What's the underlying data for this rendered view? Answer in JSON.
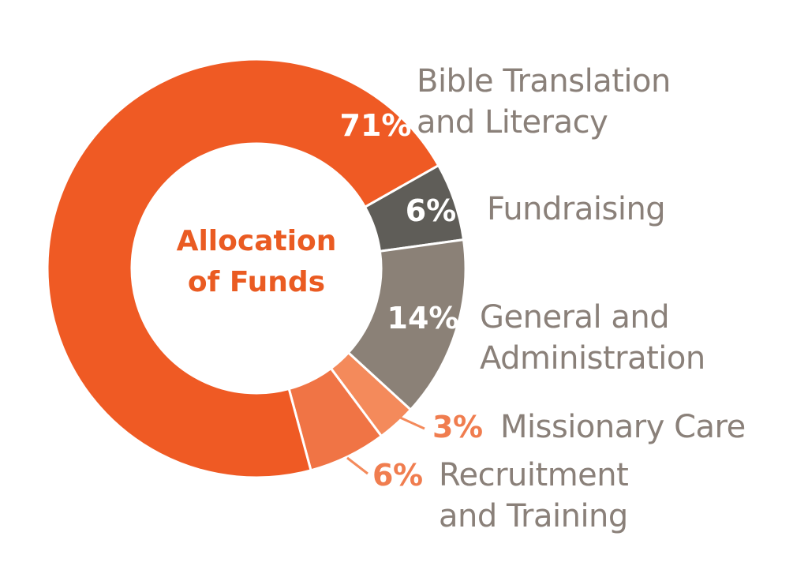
{
  "chart_data": {
    "type": "pie",
    "title": "Allocation of Funds",
    "slices": [
      {
        "label_lines": [
          "Bible Translation",
          "and Literacy"
        ],
        "value": 71,
        "pct_text": "71%",
        "color": "#ef5a24"
      },
      {
        "label_lines": [
          "Fundraising"
        ],
        "value": 6,
        "pct_text": "6%",
        "color": "#5f5d58"
      },
      {
        "label_lines": [
          "General and",
          "Administration"
        ],
        "value": 14,
        "pct_text": "14%",
        "color": "#8b8177"
      },
      {
        "label_lines": [
          "Missionary Care"
        ],
        "value": 3,
        "pct_text": "3%",
        "color": "#f48a5b"
      },
      {
        "label_lines": [
          "Recruitment",
          "and Training"
        ],
        "value": 6,
        "pct_text": "6%",
        "color": "#f07445"
      }
    ]
  }
}
